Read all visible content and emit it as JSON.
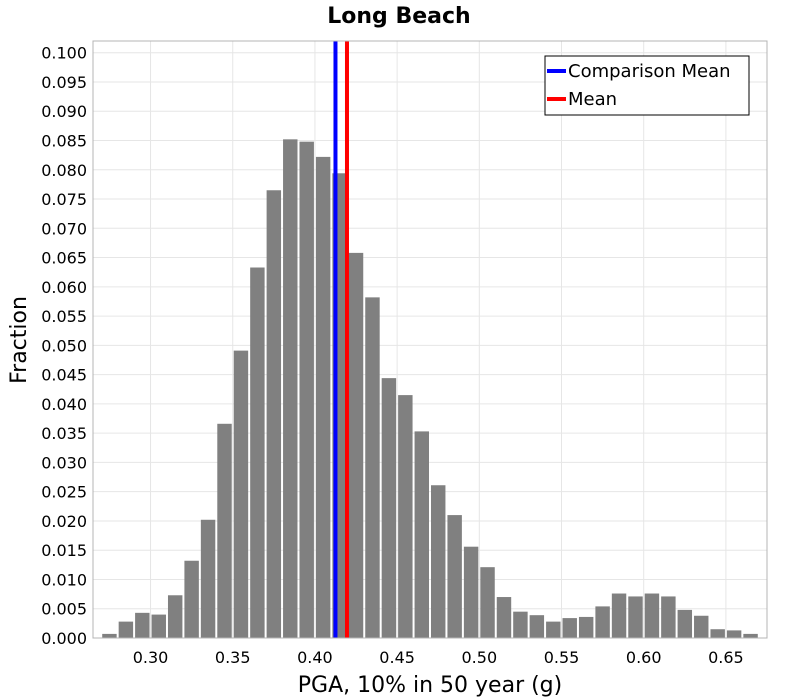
{
  "chart_data": {
    "type": "bar",
    "title": "Long Beach",
    "xlabel": "PGA, 10% in 50 year (g)",
    "ylabel": "Fraction",
    "xlim": [
      0.265,
      0.675
    ],
    "ylim": [
      0.0,
      0.102
    ],
    "bin_width": 0.01,
    "grid": true,
    "legend_position": "top-right",
    "x_ticks": [
      "0.30",
      "0.35",
      "0.40",
      "0.45",
      "0.50",
      "0.55",
      "0.60",
      "0.65"
    ],
    "y_ticks": [
      "0.000",
      "0.005",
      "0.010",
      "0.015",
      "0.020",
      "0.025",
      "0.030",
      "0.035",
      "0.040",
      "0.045",
      "0.050",
      "0.055",
      "0.060",
      "0.065",
      "0.070",
      "0.075",
      "0.080",
      "0.085",
      "0.090",
      "0.095",
      "0.100"
    ],
    "series": [
      {
        "name": "Histogram",
        "color": "#808080",
        "bin_centers": [
          0.275,
          0.285,
          0.295,
          0.305,
          0.315,
          0.325,
          0.335,
          0.345,
          0.355,
          0.365,
          0.375,
          0.385,
          0.395,
          0.405,
          0.415,
          0.425,
          0.435,
          0.445,
          0.455,
          0.465,
          0.475,
          0.485,
          0.495,
          0.505,
          0.515,
          0.525,
          0.535,
          0.545,
          0.555,
          0.565,
          0.575,
          0.585,
          0.595,
          0.605,
          0.615,
          0.625,
          0.635,
          0.645,
          0.655,
          0.665
        ],
        "values": [
          0.0007,
          0.0028,
          0.0043,
          0.004,
          0.0073,
          0.0132,
          0.0202,
          0.0366,
          0.0491,
          0.0633,
          0.0765,
          0.0852,
          0.0848,
          0.0822,
          0.0794,
          0.0658,
          0.0582,
          0.0444,
          0.0415,
          0.0353,
          0.0261,
          0.021,
          0.0156,
          0.0121,
          0.007,
          0.0045,
          0.0039,
          0.0028,
          0.0034,
          0.0036,
          0.0054,
          0.0076,
          0.0071,
          0.0076,
          0.0071,
          0.0048,
          0.0038,
          0.0015,
          0.0013,
          0.0007
        ]
      }
    ],
    "vlines": [
      {
        "name": "Comparison Mean",
        "x": 0.4125,
        "color": "#0000ff"
      },
      {
        "name": "Mean",
        "x": 0.4195,
        "color": "#ff0000"
      }
    ],
    "legend": [
      {
        "label": "Comparison Mean",
        "color": "#0000ff"
      },
      {
        "label": "Mean",
        "color": "#ff0000"
      }
    ]
  }
}
